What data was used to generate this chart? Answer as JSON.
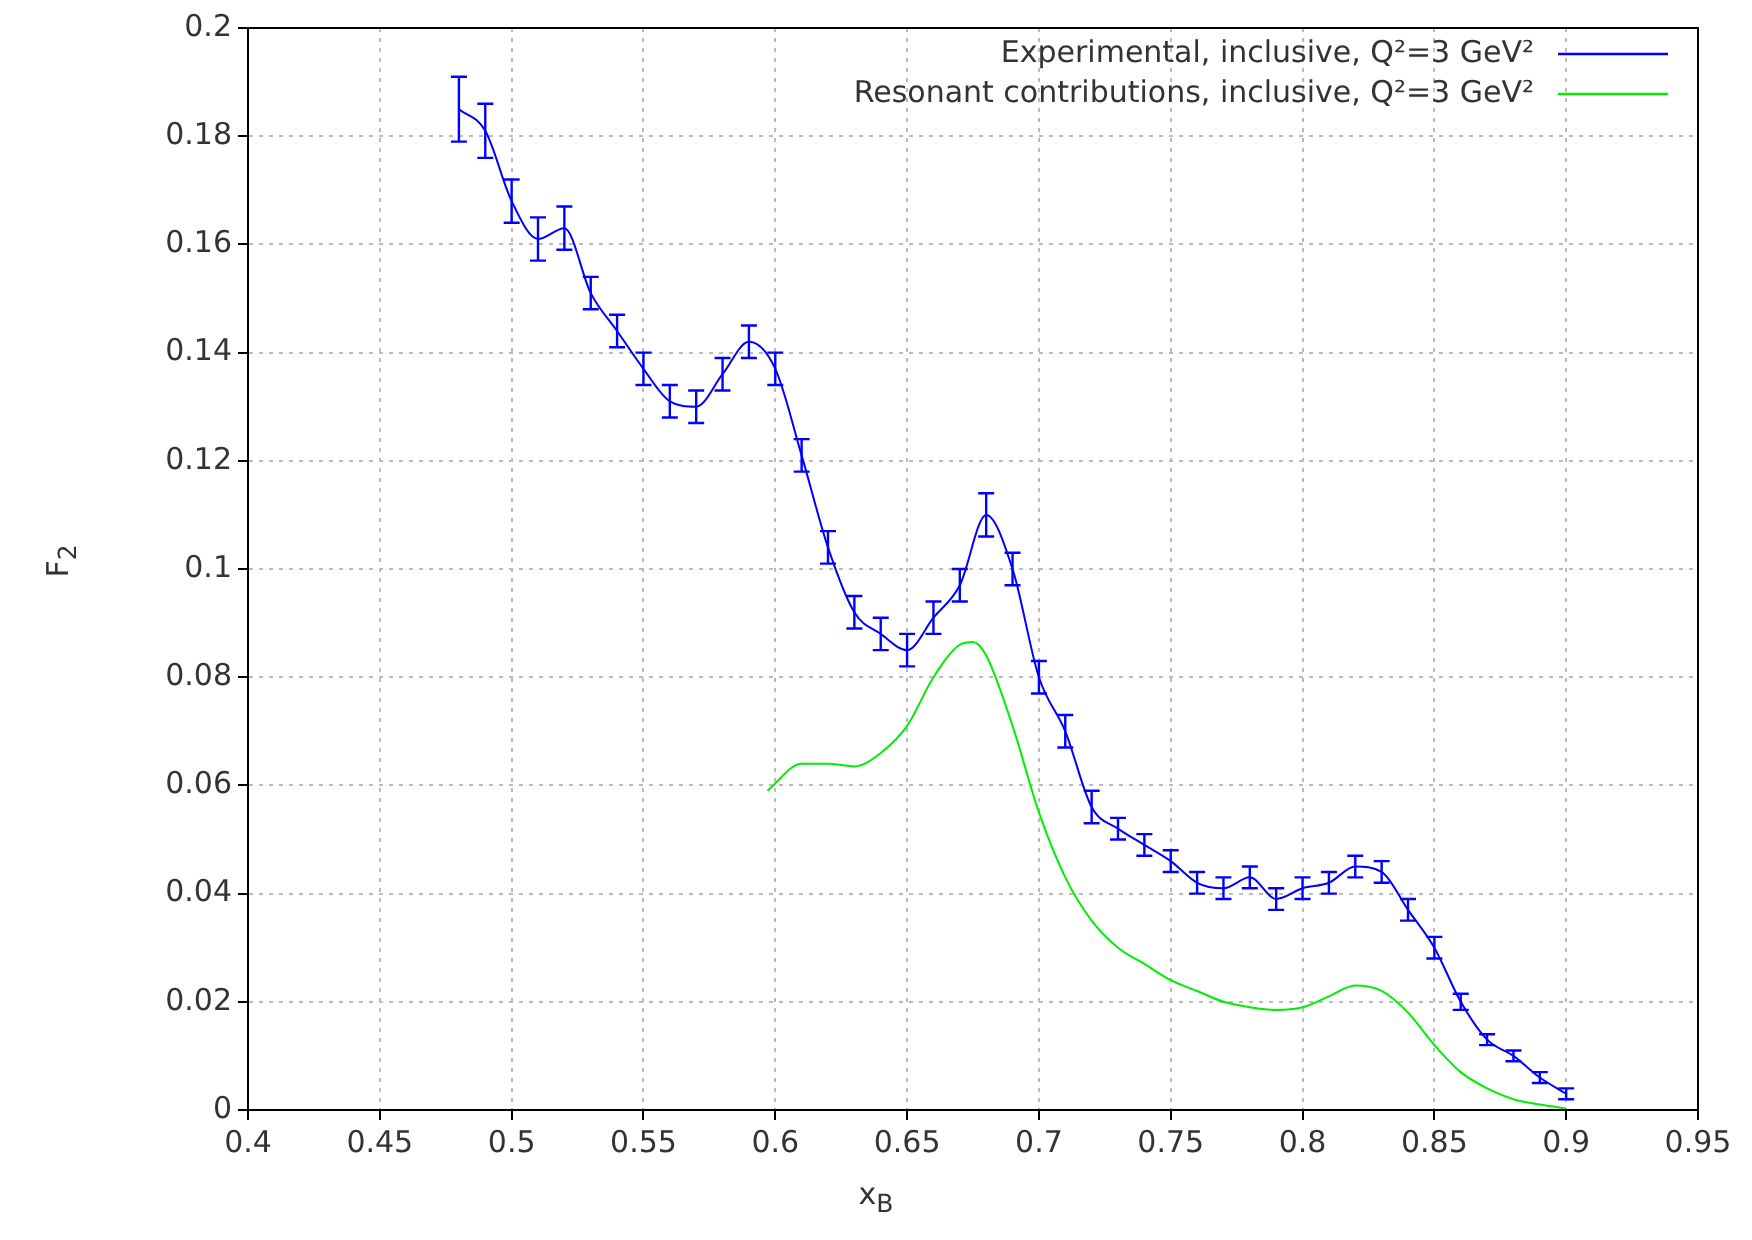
{
  "chart_data": {
    "type": "line",
    "xlabel": "x$_{B}$",
    "ylabel": "F$_{2}$",
    "xlim": [
      0.4,
      0.95
    ],
    "xticks": [
      0.4,
      0.45,
      0.5,
      0.55,
      0.6,
      0.65,
      0.7,
      0.75,
      0.8,
      0.85,
      0.9,
      0.95
    ],
    "ylim": [
      0,
      0.2
    ],
    "yticks": [
      0,
      0.02,
      0.04,
      0.06,
      0.08,
      0.1,
      0.12,
      0.14,
      0.16,
      0.18,
      0.2
    ],
    "grid": true,
    "legend": "top right",
    "marker": "none",
    "line_style": "solid",
    "series": [
      {
        "name": "Experimental, inclusive, Q²=3 GeV²",
        "color": "#0000ff",
        "x": [
          0.48,
          0.49,
          0.5,
          0.51,
          0.52,
          0.53,
          0.54,
          0.55,
          0.56,
          0.57,
          0.58,
          0.59,
          0.6,
          0.61,
          0.62,
          0.63,
          0.64,
          0.65,
          0.66,
          0.67,
          0.68,
          0.69,
          0.7,
          0.71,
          0.72,
          0.73,
          0.74,
          0.75,
          0.76,
          0.77,
          0.78,
          0.79,
          0.8,
          0.81,
          0.82,
          0.83,
          0.84,
          0.85,
          0.86,
          0.87,
          0.88,
          0.89,
          0.9
        ],
        "values": [
          0.185,
          0.181,
          0.168,
          0.161,
          0.163,
          0.151,
          0.144,
          0.137,
          0.131,
          0.13,
          0.136,
          0.142,
          0.137,
          0.121,
          0.104,
          0.092,
          0.088,
          0.085,
          0.091,
          0.097,
          0.11,
          0.1,
          0.08,
          0.07,
          0.056,
          0.052,
          0.049,
          0.046,
          0.042,
          0.041,
          0.043,
          0.039,
          0.041,
          0.042,
          0.045,
          0.044,
          0.037,
          0.03,
          0.02,
          0.013,
          0.01,
          0.006,
          0.003
        ],
        "errors": [
          0.006,
          0.005,
          0.004,
          0.004,
          0.004,
          0.003,
          0.003,
          0.003,
          0.003,
          0.003,
          0.003,
          0.003,
          0.003,
          0.003,
          0.003,
          0.003,
          0.003,
          0.003,
          0.003,
          0.003,
          0.004,
          0.003,
          0.003,
          0.003,
          0.003,
          0.002,
          0.002,
          0.002,
          0.002,
          0.002,
          0.002,
          0.002,
          0.002,
          0.002,
          0.002,
          0.002,
          0.002,
          0.002,
          0.0015,
          0.001,
          0.001,
          0.001,
          0.001
        ]
      },
      {
        "name": "Resonant contributions, inclusive, Q²=3 GeV²",
        "color": "#00ee00",
        "x": [
          0.597,
          0.61,
          0.62,
          0.63,
          0.64,
          0.65,
          0.66,
          0.67,
          0.675,
          0.68,
          0.69,
          0.7,
          0.71,
          0.72,
          0.73,
          0.74,
          0.75,
          0.76,
          0.77,
          0.78,
          0.79,
          0.8,
          0.81,
          0.82,
          0.83,
          0.84,
          0.85,
          0.86,
          0.87,
          0.88,
          0.89,
          0.9
        ],
        "values": [
          0.059,
          0.064,
          0.064,
          0.0635,
          0.066,
          0.071,
          0.08,
          0.086,
          0.0865,
          0.084,
          0.071,
          0.055,
          0.043,
          0.035,
          0.03,
          0.027,
          0.024,
          0.022,
          0.02,
          0.019,
          0.0185,
          0.019,
          0.021,
          0.023,
          0.022,
          0.018,
          0.012,
          0.007,
          0.004,
          0.002,
          0.001,
          0.0003
        ]
      }
    ]
  }
}
